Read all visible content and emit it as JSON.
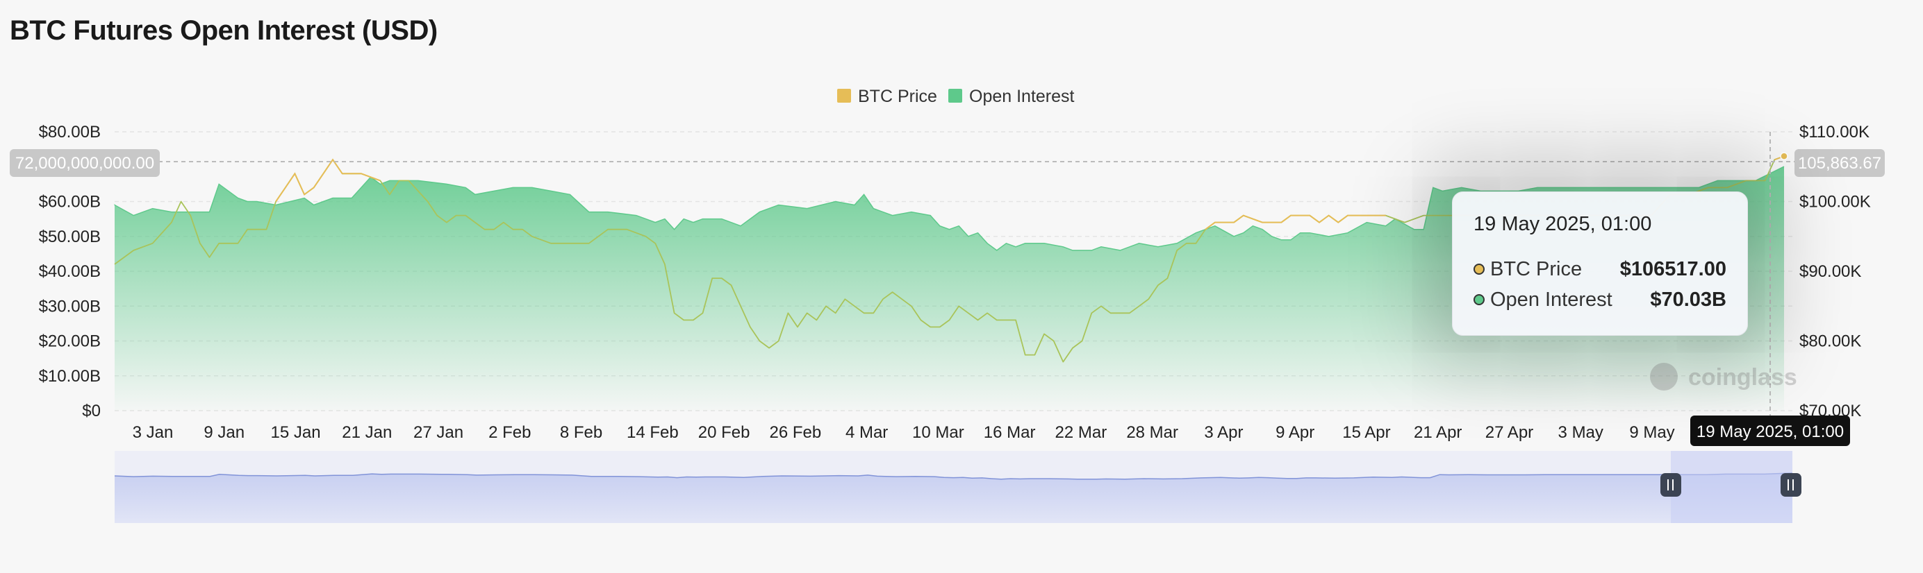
{
  "header": {
    "title": "BTC Futures Open Interest (USD)"
  },
  "legend": [
    {
      "name": "BTC Price",
      "color": "#e6bd57"
    },
    {
      "name": "Open Interest",
      "color": "#5ec98b"
    }
  ],
  "axis_pointer": {
    "left_value": "72,000,000,000.00",
    "right_value": "105,863.67",
    "x_value": "19 May 2025, 01:00"
  },
  "tooltip": {
    "date": "19 May 2025, 01:00",
    "rows": [
      {
        "name": "BTC Price",
        "value": "$106517.00",
        "color": "#e6bd57"
      },
      {
        "name": "Open Interest",
        "value": "$70.03B",
        "color": "#5ec98b"
      }
    ]
  },
  "watermark": "coinglass",
  "chart_data": {
    "type": "area",
    "title": "BTC Futures Open Interest (USD)",
    "x_tick_labels": [
      "3 Jan",
      "9 Jan",
      "15 Jan",
      "21 Jan",
      "27 Jan",
      "2 Feb",
      "8 Feb",
      "14 Feb",
      "20 Feb",
      "26 Feb",
      "4 Mar",
      "10 Mar",
      "16 Mar",
      "22 Mar",
      "28 Mar",
      "3 Apr",
      "9 Apr",
      "15 Apr",
      "21 Apr",
      "27 Apr",
      "3 May",
      "9 May"
    ],
    "y_left": {
      "name": "Open Interest",
      "ticks": [
        "$0",
        "$10.00B",
        "$20.00B",
        "$30.00B",
        "$40.00B",
        "$50.00B",
        "$60.00B",
        "$80.00B"
      ],
      "tick_values": [
        0,
        10,
        20,
        30,
        40,
        50,
        60,
        80
      ],
      "range": [
        0,
        80
      ],
      "unit": "USD billions"
    },
    "y_right": {
      "name": "BTC Price",
      "ticks": [
        "$70.00K",
        "$80.00K",
        "$90.00K",
        "$100.00K",
        "$110.00K"
      ],
      "tick_values": [
        70,
        80,
        90,
        100,
        110
      ],
      "range": [
        70,
        110
      ],
      "unit": "USD thousands"
    },
    "x_range_days": [
      0,
      139
    ],
    "series": [
      {
        "name": "Open Interest",
        "color": "#5ec98b",
        "type": "area",
        "points": [
          [
            -2,
            59
          ],
          [
            0,
            56
          ],
          [
            2,
            58
          ],
          [
            4,
            57
          ],
          [
            6,
            57
          ],
          [
            8,
            57
          ],
          [
            9,
            65
          ],
          [
            11,
            61
          ],
          [
            12,
            60
          ],
          [
            13,
            60
          ],
          [
            15,
            59
          ],
          [
            18,
            61
          ],
          [
            19,
            59
          ],
          [
            21,
            61
          ],
          [
            23,
            61
          ],
          [
            25,
            67
          ],
          [
            26,
            65
          ],
          [
            27,
            66
          ],
          [
            28,
            66
          ],
          [
            30,
            66
          ],
          [
            33,
            65
          ],
          [
            35,
            64
          ],
          [
            36,
            62
          ],
          [
            38,
            63
          ],
          [
            40,
            64
          ],
          [
            42,
            64
          ],
          [
            44,
            63
          ],
          [
            46,
            62
          ],
          [
            48,
            57
          ],
          [
            50,
            57
          ],
          [
            53,
            56
          ],
          [
            55,
            54
          ],
          [
            56,
            55
          ],
          [
            57,
            52
          ],
          [
            58,
            55
          ],
          [
            59,
            54
          ],
          [
            60,
            55
          ],
          [
            62,
            55
          ],
          [
            64,
            53
          ],
          [
            66,
            57
          ],
          [
            68,
            59
          ],
          [
            71,
            58
          ],
          [
            74,
            60
          ],
          [
            76,
            59
          ],
          [
            77,
            62
          ],
          [
            78,
            58
          ],
          [
            80,
            56
          ],
          [
            82,
            57
          ],
          [
            84,
            56
          ],
          [
            85,
            53
          ],
          [
            86,
            52
          ],
          [
            87,
            53
          ],
          [
            88,
            50
          ],
          [
            89,
            51
          ],
          [
            90,
            48
          ],
          [
            91,
            46
          ],
          [
            92,
            48
          ],
          [
            93,
            47
          ],
          [
            94,
            48
          ],
          [
            96,
            48
          ],
          [
            98,
            47
          ],
          [
            99,
            46
          ],
          [
            101,
            46
          ],
          [
            102,
            47
          ],
          [
            104,
            46
          ],
          [
            106,
            48
          ],
          [
            108,
            47
          ],
          [
            110,
            48
          ],
          [
            112,
            51
          ],
          [
            114,
            53
          ],
          [
            116,
            50
          ],
          [
            117,
            51
          ],
          [
            118,
            53
          ],
          [
            119,
            52
          ],
          [
            120,
            50
          ],
          [
            121,
            49
          ],
          [
            122,
            49
          ],
          [
            123,
            51
          ],
          [
            124,
            51
          ],
          [
            126,
            50
          ],
          [
            128,
            51
          ],
          [
            130,
            54
          ],
          [
            132,
            53
          ],
          [
            133,
            55
          ],
          [
            135,
            52
          ],
          [
            136,
            52
          ],
          [
            137,
            64
          ],
          [
            138,
            63
          ],
          [
            140,
            64
          ],
          [
            142,
            63
          ],
          [
            144,
            63
          ],
          [
            146,
            63
          ],
          [
            148,
            64
          ],
          [
            150,
            64
          ],
          [
            152,
            64
          ],
          [
            155,
            64
          ],
          [
            158,
            64
          ],
          [
            162,
            64
          ],
          [
            165,
            64
          ],
          [
            167,
            66
          ],
          [
            169,
            66
          ],
          [
            171,
            66
          ],
          [
            174,
            70.03
          ]
        ]
      },
      {
        "name": "BTC Price",
        "color": "#e6bd57",
        "type": "line",
        "axis": "right",
        "points": [
          [
            -2,
            91
          ],
          [
            0,
            93
          ],
          [
            2,
            94
          ],
          [
            4,
            97
          ],
          [
            5,
            100
          ],
          [
            6,
            98
          ],
          [
            7,
            94
          ],
          [
            8,
            92
          ],
          [
            9,
            94
          ],
          [
            11,
            94
          ],
          [
            12,
            96
          ],
          [
            14,
            96
          ],
          [
            15,
            100
          ],
          [
            16,
            102
          ],
          [
            17,
            104
          ],
          [
            18,
            101
          ],
          [
            19,
            102
          ],
          [
            20,
            104
          ],
          [
            21,
            106
          ],
          [
            22,
            104
          ],
          [
            24,
            104
          ],
          [
            26,
            103
          ],
          [
            27,
            101
          ],
          [
            28,
            103
          ],
          [
            29,
            103
          ],
          [
            31,
            100
          ],
          [
            32,
            98
          ],
          [
            33,
            97
          ],
          [
            34,
            98
          ],
          [
            35,
            98
          ],
          [
            36,
            97
          ],
          [
            37,
            96
          ],
          [
            38,
            96
          ],
          [
            39,
            97
          ],
          [
            40,
            96
          ],
          [
            41,
            96
          ],
          [
            42,
            95
          ],
          [
            44,
            94
          ],
          [
            46,
            94
          ],
          [
            48,
            94
          ],
          [
            50,
            96
          ],
          [
            52,
            96
          ],
          [
            54,
            95
          ],
          [
            55,
            94
          ],
          [
            56,
            91
          ],
          [
            57,
            84
          ],
          [
            58,
            83
          ],
          [
            59,
            83
          ],
          [
            60,
            84
          ],
          [
            61,
            89
          ],
          [
            62,
            89
          ],
          [
            63,
            88
          ],
          [
            64,
            85
          ],
          [
            65,
            82
          ],
          [
            66,
            80
          ],
          [
            67,
            79
          ],
          [
            68,
            80
          ],
          [
            69,
            84
          ],
          [
            70,
            82
          ],
          [
            71,
            84
          ],
          [
            72,
            83
          ],
          [
            73,
            85
          ],
          [
            74,
            84
          ],
          [
            75,
            86
          ],
          [
            76,
            85
          ],
          [
            77,
            84
          ],
          [
            78,
            84
          ],
          [
            79,
            86
          ],
          [
            80,
            87
          ],
          [
            81,
            86
          ],
          [
            82,
            85
          ],
          [
            83,
            83
          ],
          [
            84,
            82
          ],
          [
            85,
            82
          ],
          [
            86,
            83
          ],
          [
            87,
            85
          ],
          [
            88,
            84
          ],
          [
            89,
            83
          ],
          [
            90,
            84
          ],
          [
            91,
            83
          ],
          [
            92,
            83
          ],
          [
            93,
            83
          ],
          [
            94,
            78
          ],
          [
            95,
            78
          ],
          [
            96,
            81
          ],
          [
            97,
            80
          ],
          [
            98,
            77
          ],
          [
            99,
            79
          ],
          [
            100,
            80
          ],
          [
            101,
            84
          ],
          [
            102,
            85
          ],
          [
            103,
            84
          ],
          [
            104,
            84
          ],
          [
            105,
            84
          ],
          [
            106,
            85
          ],
          [
            107,
            86
          ],
          [
            108,
            88
          ],
          [
            109,
            89
          ],
          [
            110,
            93
          ],
          [
            111,
            94
          ],
          [
            112,
            94
          ],
          [
            113,
            96
          ],
          [
            114,
            97
          ],
          [
            115,
            97
          ],
          [
            116,
            97
          ],
          [
            117,
            98
          ],
          [
            119,
            97
          ],
          [
            120,
            97
          ],
          [
            121,
            97
          ],
          [
            122,
            98
          ],
          [
            124,
            98
          ],
          [
            125,
            97
          ],
          [
            126,
            98
          ],
          [
            127,
            97
          ],
          [
            128,
            98
          ],
          [
            130,
            98
          ],
          [
            132,
            98
          ],
          [
            134,
            97
          ],
          [
            136,
            98
          ],
          [
            138,
            98
          ],
          [
            140,
            98
          ],
          [
            142,
            98
          ],
          [
            145,
            98
          ],
          [
            148,
            98
          ],
          [
            150,
            98
          ],
          [
            152,
            98
          ],
          [
            154,
            98
          ],
          [
            156,
            98
          ],
          [
            158,
            98
          ],
          [
            160,
            98
          ],
          [
            162,
            101
          ],
          [
            164,
            101
          ],
          [
            166,
            102
          ],
          [
            168,
            102
          ],
          [
            170,
            103
          ],
          [
            172,
            103
          ],
          [
            173,
            106
          ],
          [
            174,
            106.5
          ]
        ]
      }
    ],
    "grid": true,
    "legend_position": "top-center"
  }
}
